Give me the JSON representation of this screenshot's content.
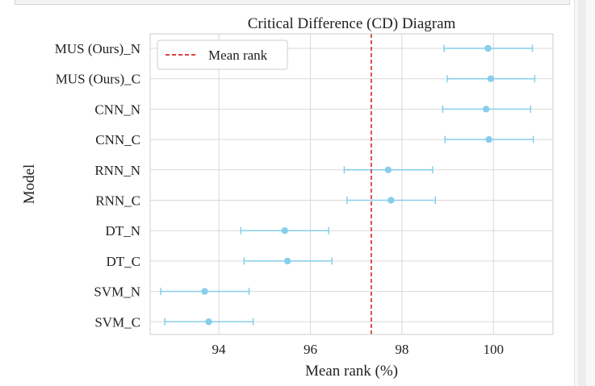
{
  "colors": {
    "errorbar": "#87ceeb",
    "point": "#87ceeb",
    "mean_line": "#d62728",
    "grid": "#d9d9d9",
    "axes_edge": "#cccccc"
  },
  "chart_data": {
    "type": "scatter",
    "title": "Critical Difference (CD) Diagram",
    "xlabel": "Mean rank (%)",
    "ylabel": "Model",
    "xlim": [
      92.5,
      101.3
    ],
    "xticks": [
      94,
      96,
      98,
      100
    ],
    "xtick_labels": [
      "94",
      "96",
      "98",
      "100"
    ],
    "grid": true,
    "legend": {
      "placement": "top-left",
      "entries": [
        "Mean rank"
      ]
    },
    "mean_rank": 97.33,
    "categories": [
      "MUS (Ours)_N",
      "MUS (Ours)_C",
      "CNN_N",
      "CNN_C",
      "RNN_N",
      "RNN_C",
      "DT_N",
      "DT_C",
      "SVM_N",
      "SVM_C"
    ],
    "series": [
      {
        "values": [
          99.88,
          99.94,
          99.84,
          99.9,
          97.7,
          97.76,
          95.44,
          95.5,
          93.69,
          93.78
        ],
        "ci_low": [
          98.92,
          98.99,
          98.89,
          98.94,
          96.74,
          96.8,
          94.48,
          94.55,
          92.73,
          92.82
        ],
        "ci_high": [
          100.85,
          100.9,
          100.81,
          100.87,
          98.67,
          98.73,
          96.4,
          96.47,
          94.66,
          94.75
        ]
      }
    ]
  }
}
